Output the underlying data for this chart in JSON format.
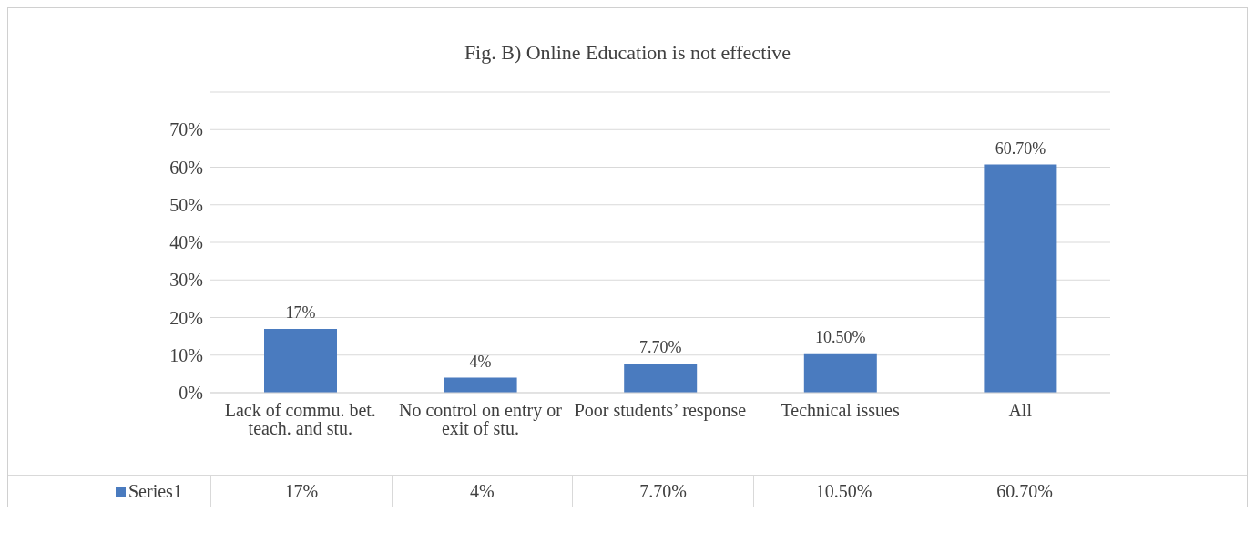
{
  "chart_data": {
    "type": "bar",
    "title": "Fig. B) Online Education is not effective",
    "categories": [
      "Lack of commu. bet. teach. and stu.",
      "No control on entry or exit of stu.",
      "Poor students’ response",
      "Technical issues",
      "All"
    ],
    "series": [
      {
        "name": "Series1",
        "color": "#4a7bbf",
        "values": [
          17,
          4,
          7.7,
          10.5,
          60.7
        ],
        "value_labels": [
          "17%",
          "4%",
          "7.70%",
          "10.50%",
          "60.70%"
        ]
      }
    ],
    "ylim": [
      0,
      80
    ],
    "yticks": [
      {
        "value": 0,
        "label": "0%"
      },
      {
        "value": 10,
        "label": "10%"
      },
      {
        "value": 20,
        "label": "20%"
      },
      {
        "value": 30,
        "label": "30%"
      },
      {
        "value": 40,
        "label": "40%"
      },
      {
        "value": 50,
        "label": "50%"
      },
      {
        "value": 60,
        "label": "60%"
      },
      {
        "value": 70,
        "label": "70%"
      },
      {
        "value": 80,
        "label": null
      }
    ],
    "grid": "y",
    "legend": "bottom"
  }
}
